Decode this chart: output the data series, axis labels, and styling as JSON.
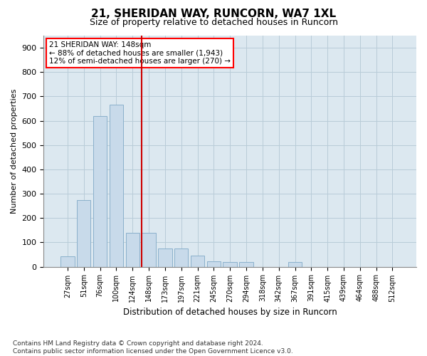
{
  "title": "21, SHERIDAN WAY, RUNCORN, WA7 1XL",
  "subtitle": "Size of property relative to detached houses in Runcorn",
  "xlabel": "Distribution of detached houses by size in Runcorn",
  "ylabel": "Number of detached properties",
  "bar_color": "#c8daea",
  "bar_edge_color": "#8ab0cc",
  "background_color": "#ffffff",
  "plot_bg_color": "#dce8f0",
  "grid_color": "#b8ccd8",
  "marker_color": "#cc0000",
  "annotation_line1": "21 SHERIDAN WAY: 148sqm",
  "annotation_line2": "← 88% of detached houses are smaller (1,943)",
  "annotation_line3": "12% of semi-detached houses are larger (270) →",
  "categories": [
    "27sqm",
    "51sqm",
    "76sqm",
    "100sqm",
    "124sqm",
    "148sqm",
    "173sqm",
    "197sqm",
    "221sqm",
    "245sqm",
    "270sqm",
    "294sqm",
    "318sqm",
    "342sqm",
    "367sqm",
    "391sqm",
    "415sqm",
    "439sqm",
    "464sqm",
    "488sqm",
    "512sqm"
  ],
  "values": [
    42,
    275,
    620,
    665,
    140,
    140,
    75,
    75,
    45,
    22,
    20,
    18,
    0,
    0,
    18,
    0,
    0,
    0,
    0,
    0,
    0
  ],
  "ylim": [
    0,
    950
  ],
  "yticks": [
    0,
    100,
    200,
    300,
    400,
    500,
    600,
    700,
    800,
    900
  ],
  "footnote_line1": "Contains HM Land Registry data © Crown copyright and database right 2024.",
  "footnote_line2": "Contains public sector information licensed under the Open Government Licence v3.0.",
  "marker_bar_index": 5,
  "title_fontsize": 11,
  "subtitle_fontsize": 9,
  "xlabel_fontsize": 8.5,
  "ylabel_fontsize": 8,
  "tick_fontsize": 7,
  "ytick_fontsize": 8,
  "footnote_fontsize": 6.5,
  "annot_fontsize": 7.5
}
